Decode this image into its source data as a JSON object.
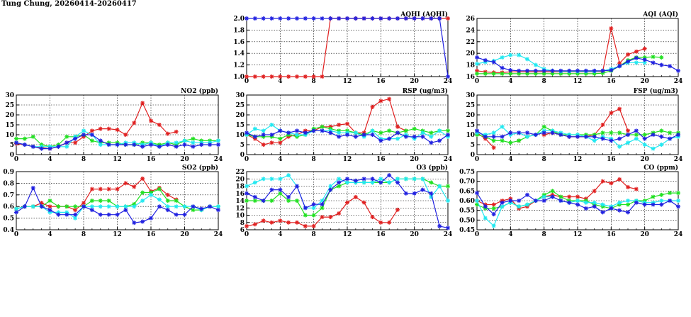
{
  "page_title": "Tung Chung, 20260414-20260417",
  "colors": {
    "red": "#e02020",
    "green": "#20e020",
    "cyan": "#20e8f0",
    "blue": "#2020e0",
    "grid": "#000000"
  },
  "chart_data": [
    {
      "id": "aqhi",
      "type": "line",
      "title": "AQHI (AQHI)",
      "xlim": [
        0,
        24
      ],
      "ylim": [
        1.0,
        2.0
      ],
      "xticks": [
        "0",
        "4",
        "8",
        "12",
        "16",
        "20",
        "24"
      ],
      "yticks": [
        "1.0",
        "1.2",
        "1.4",
        "1.6",
        "1.8",
        "2.0"
      ],
      "series": [
        {
          "color": "red",
          "values": [
            1,
            1,
            1,
            1,
            1,
            1,
            1,
            1,
            1,
            1,
            2,
            2,
            2,
            2,
            2,
            2,
            2,
            2,
            2,
            2,
            2,
            2,
            2,
            2,
            2
          ]
        },
        {
          "color": "blue",
          "values": [
            2,
            2,
            2,
            2,
            2,
            2,
            2,
            2,
            2,
            2,
            2,
            2,
            2,
            2,
            2,
            2,
            2,
            2,
            2,
            2,
            2,
            2,
            2,
            2,
            1
          ]
        }
      ]
    },
    {
      "id": "aqi",
      "type": "line",
      "title": "AQI (AQI)",
      "xlim": [
        0,
        24
      ],
      "ylim": [
        16,
        26
      ],
      "xticks": [
        "0",
        "4",
        "8",
        "12",
        "16",
        "20",
        "24"
      ],
      "yticks": [
        "16",
        "18",
        "20",
        "22",
        "24",
        "26"
      ],
      "series": [
        {
          "color": "red",
          "values": [
            17,
            16.8,
            16.7,
            16.7,
            16.8,
            16.8,
            16.8,
            16.8,
            16.8,
            16.8,
            16.8,
            16.8,
            16.8,
            16.8,
            16.8,
            16.9,
            24.3,
            18.3,
            19.8,
            20.3,
            20.8
          ]
        },
        {
          "color": "green",
          "values": [
            16.5,
            16.5,
            16.5,
            16.5,
            16.5,
            16.5,
            16.5,
            16.5,
            16.5,
            16.5,
            16.5,
            16.5,
            16.5,
            16.5,
            16.5,
            16.6,
            17,
            17.8,
            18.8,
            19.3,
            19.3,
            19.4,
            19.3
          ]
        },
        {
          "color": "cyan",
          "values": [
            18.2,
            18.5,
            18.7,
            19.3,
            19.7,
            19.7,
            19,
            18,
            17.3,
            17,
            16.9,
            16.9,
            16.9,
            16.9,
            16.9,
            17,
            17.3,
            17.8,
            18.4,
            18.4,
            18.4
          ]
        },
        {
          "color": "blue",
          "values": [
            19.3,
            18.8,
            18.5,
            17.5,
            17.1,
            17,
            17,
            17,
            17,
            17,
            17,
            17,
            17,
            17,
            17,
            17,
            17.1,
            17.8,
            18.6,
            19.2,
            18.9,
            18.4,
            18,
            17.8,
            17
          ]
        }
      ]
    },
    {
      "id": "no2",
      "type": "line",
      "title": "NO2 (ppb)",
      "xlim": [
        0,
        24
      ],
      "ylim": [
        0,
        30
      ],
      "xticks": [
        "0",
        "4",
        "8",
        "12",
        "16",
        "20",
        "24"
      ],
      "yticks": [
        "0",
        "5",
        "10",
        "15",
        "20",
        "25",
        "30"
      ],
      "series": [
        {
          "color": "red",
          "values": [
            5.5,
            5,
            4,
            3.5,
            3,
            4,
            6,
            6,
            9,
            12,
            13,
            13,
            12.5,
            10,
            16,
            26,
            17,
            15,
            10.5,
            11.5
          ]
        },
        {
          "color": "green",
          "values": [
            8,
            8,
            9,
            5,
            4,
            5,
            9,
            9,
            10,
            7,
            6,
            6,
            6,
            5,
            5,
            6,
            6,
            5,
            6,
            5,
            7,
            8,
            7,
            7,
            7
          ]
        },
        {
          "color": "cyan",
          "values": [
            6,
            5,
            4,
            4,
            4,
            4,
            4,
            9,
            12,
            10,
            5,
            5,
            5,
            6,
            6,
            5,
            6,
            4,
            6,
            6,
            7,
            6,
            6,
            6,
            7
          ]
        },
        {
          "color": "blue",
          "values": [
            6,
            5,
            4,
            3,
            3,
            4,
            6,
            8,
            10,
            10,
            7,
            5,
            5,
            5,
            5,
            4,
            5,
            4,
            5,
            4,
            5,
            4,
            5,
            5,
            5
          ]
        }
      ]
    },
    {
      "id": "rsp",
      "type": "line",
      "title": "RSP (ug/m3)",
      "xlim": [
        0,
        24
      ],
      "ylim": [
        0,
        30
      ],
      "xticks": [
        "0",
        "4",
        "8",
        "12",
        "16",
        "20",
        "24"
      ],
      "yticks": [
        "0",
        "5",
        "10",
        "15",
        "20",
        "25",
        "30"
      ],
      "series": [
        {
          "color": "red",
          "values": [
            10,
            8,
            5,
            6,
            6,
            9,
            10,
            12,
            12,
            14,
            14,
            15,
            15.5,
            11,
            11,
            24,
            27,
            28,
            14,
            12
          ]
        },
        {
          "color": "green",
          "values": [
            10,
            9,
            9,
            9,
            8,
            10,
            9,
            10,
            13,
            14,
            13,
            12,
            12,
            11,
            10,
            12,
            11,
            12,
            11,
            12,
            13,
            12,
            11,
            12,
            12
          ]
        },
        {
          "color": "cyan",
          "values": [
            10,
            13,
            12,
            15,
            12,
            11,
            10,
            10,
            12,
            12,
            12,
            11,
            11,
            11,
            9,
            12,
            8,
            8,
            8,
            10,
            8,
            11,
            9,
            12,
            9
          ]
        },
        {
          "color": "blue",
          "values": [
            11,
            9,
            10,
            10,
            12,
            11,
            12,
            11,
            12,
            12,
            11,
            9,
            10,
            9,
            10,
            10,
            7,
            8,
            11,
            9,
            9,
            9,
            6,
            7,
            10
          ]
        }
      ]
    },
    {
      "id": "fsp",
      "type": "line",
      "title": "FSP (ug/m3)",
      "xlim": [
        0,
        24
      ],
      "ylim": [
        0,
        30
      ],
      "xticks": [
        "0",
        "4",
        "8",
        "12",
        "16",
        "20",
        "24"
      ],
      "yticks": [
        "0",
        "5",
        "10",
        "15",
        "20",
        "25",
        "30"
      ],
      "series": [
        {
          "color": "red",
          "values": [
            11,
            8,
            3.5,
            null,
            null,
            7,
            null,
            null,
            10,
            11,
            10,
            9,
            9,
            9,
            10,
            15,
            21,
            23,
            12
          ]
        },
        {
          "color": "green",
          "values": [
            10,
            9,
            7,
            7,
            6,
            7,
            9,
            10,
            14,
            12,
            10,
            10,
            10,
            10,
            10,
            11,
            11,
            11,
            10,
            10,
            10,
            11,
            12,
            11,
            11
          ]
        },
        {
          "color": "cyan",
          "values": [
            11,
            10,
            11,
            14,
            10,
            11,
            9,
            10,
            12,
            12,
            11,
            10,
            10,
            9,
            7,
            9,
            8,
            4,
            6,
            8,
            5,
            3,
            5,
            8,
            9
          ]
        },
        {
          "color": "blue",
          "values": [
            12,
            9,
            9,
            9,
            11,
            11,
            11,
            10,
            11,
            11,
            10,
            9,
            9,
            9,
            9,
            8,
            7,
            8,
            10,
            12,
            8,
            10,
            9,
            8,
            10
          ]
        }
      ]
    },
    {
      "id": "so2",
      "type": "line",
      "title": "SO2 (ppb)",
      "xlim": [
        0,
        24
      ],
      "ylim": [
        0.4,
        0.9
      ],
      "xticks": [
        "0",
        "4",
        "8",
        "12",
        "16",
        "20",
        "24"
      ],
      "yticks": [
        "0.4",
        "0.5",
        "0.6",
        "0.7",
        "0.8",
        "0.9"
      ],
      "series": [
        {
          "color": "red",
          "values": [
            0.58,
            0.6,
            0.6,
            0.63,
            0.6,
            0.6,
            0.6,
            0.57,
            0.63,
            0.75,
            0.75,
            0.75,
            0.75,
            0.8,
            0.77,
            0.84,
            0.73,
            0.76,
            0.7,
            0.66
          ]
        },
        {
          "color": "green",
          "values": [
            0.58,
            0.6,
            0.6,
            0.6,
            0.65,
            0.6,
            0.6,
            0.6,
            0.6,
            0.65,
            0.65,
            0.65,
            0.6,
            0.6,
            0.62,
            0.72,
            0.72,
            0.75,
            0.65,
            0.65,
            0.6,
            0.57,
            0.57,
            0.6,
            0.6
          ]
        },
        {
          "color": "cyan",
          "values": [
            0.58,
            0.6,
            0.6,
            0.6,
            0.55,
            0.55,
            0.55,
            0.5,
            0.6,
            0.6,
            0.6,
            0.6,
            0.6,
            0.6,
            0.6,
            0.65,
            0.7,
            0.66,
            0.6,
            0.6,
            0.6,
            0.6,
            0.57,
            0.6,
            0.6
          ]
        },
        {
          "color": "blue",
          "values": [
            0.55,
            0.6,
            0.76,
            0.6,
            0.57,
            0.53,
            0.53,
            0.53,
            0.6,
            0.57,
            0.53,
            0.53,
            0.53,
            0.57,
            0.46,
            0.47,
            0.5,
            0.6,
            0.57,
            0.53,
            0.53,
            0.6,
            0.58,
            0.6,
            0.57
          ]
        }
      ]
    },
    {
      "id": "o3",
      "type": "line",
      "title": "O3 (ppb)",
      "xlim": [
        0,
        24
      ],
      "ylim": [
        6,
        22
      ],
      "xticks": [
        "0",
        "4",
        "8",
        "12",
        "16",
        "20",
        "24"
      ],
      "yticks": [
        "6",
        "8",
        "10",
        "12",
        "14",
        "16",
        "18",
        "20",
        "22"
      ],
      "series": [
        {
          "color": "red",
          "values": [
            7,
            7.5,
            8.5,
            8,
            8.5,
            8,
            8,
            7,
            7,
            9.5,
            9.5,
            10.5,
            13.5,
            15,
            13.5,
            9.5,
            8,
            8,
            11.5
          ]
        },
        {
          "color": "green",
          "values": [
            14,
            14,
            14,
            14,
            16,
            14,
            14,
            10,
            10,
            12,
            17,
            18,
            19,
            19,
            19,
            19,
            19,
            19,
            20,
            20,
            20,
            20,
            19,
            18,
            18
          ]
        },
        {
          "color": "cyan",
          "values": [
            18,
            19,
            20,
            20,
            20,
            21,
            18,
            12,
            12,
            14,
            18,
            20,
            19,
            19,
            19,
            19,
            20,
            19,
            20,
            20,
            20,
            20,
            15,
            18,
            14
          ]
        },
        {
          "color": "blue",
          "values": [
            16,
            15,
            14,
            17,
            17,
            15,
            18,
            12,
            13,
            13,
            17,
            19,
            20,
            19.5,
            20,
            20,
            19,
            21,
            19,
            16,
            16,
            17,
            16,
            7,
            6.5
          ]
        }
      ]
    },
    {
      "id": "co",
      "type": "line",
      "title": "CO (ppm)",
      "xlim": [
        0,
        24
      ],
      "ylim": [
        0.45,
        0.75
      ],
      "xticks": [
        "0",
        "4",
        "8",
        "12",
        "16",
        "20",
        "24"
      ],
      "yticks": [
        "0.45",
        "0.50",
        "0.55",
        "0.60",
        "0.65",
        "0.70",
        "0.75"
      ],
      "series": [
        {
          "color": "red",
          "values": [
            0.6,
            0.58,
            0.58,
            0.6,
            0.61,
            0.56,
            0.57,
            0.6,
            0.62,
            0.63,
            0.62,
            0.62,
            0.62,
            0.61,
            0.65,
            0.7,
            0.69,
            0.71,
            0.67,
            0.66
          ]
        },
        {
          "color": "green",
          "values": [
            0.58,
            0.56,
            0.56,
            0.57,
            0.59,
            0.57,
            0.58,
            0.6,
            0.63,
            0.65,
            0.62,
            0.6,
            0.6,
            0.6,
            0.58,
            0.57,
            0.56,
            0.58,
            0.58,
            0.6,
            0.6,
            0.62,
            0.63,
            0.64,
            0.64
          ]
        },
        {
          "color": "cyan",
          "values": [
            0.6,
            0.51,
            0.47,
            0.57,
            0.59,
            0.57,
            0.58,
            0.6,
            0.62,
            0.62,
            0.6,
            0.59,
            0.6,
            0.59,
            0.59,
            0.58,
            0.57,
            0.59,
            0.6,
            0.6,
            0.59,
            0.59,
            0.6,
            0.6,
            0.6
          ]
        },
        {
          "color": "blue",
          "values": [
            0.64,
            0.57,
            0.53,
            0.59,
            0.6,
            0.6,
            0.63,
            0.6,
            0.6,
            0.62,
            0.6,
            0.59,
            0.58,
            0.56,
            0.57,
            0.54,
            0.56,
            0.55,
            0.54,
            0.59,
            0.58,
            0.58,
            0.58,
            0.6,
            0.57
          ]
        }
      ]
    }
  ]
}
